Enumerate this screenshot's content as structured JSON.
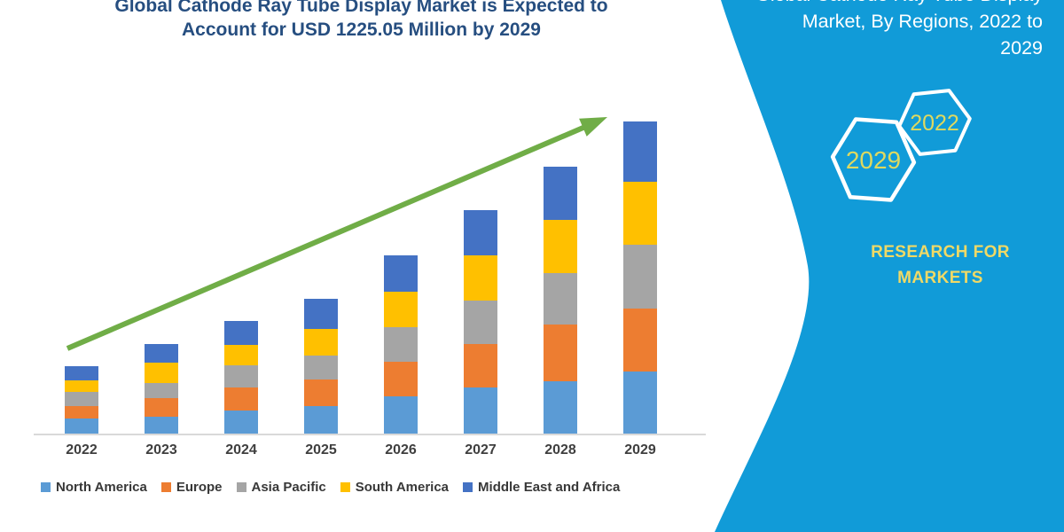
{
  "page": {
    "title_line1": "Global Cathode Ray Tube Display Market is Expected to",
    "title_line2": "Account for USD 1225.05 Million by 2029",
    "title_color": "#264E80"
  },
  "side_panel": {
    "background_color": "#119BD8",
    "heading_lines": [
      "Global Cathode Ray Tube Display",
      "Market, By Regions, 2022 to",
      "2029"
    ],
    "hexagon_badges": [
      {
        "label": "2029"
      },
      {
        "label": "2022"
      }
    ],
    "brand_line1": "RESEARCH FOR",
    "brand_line2": "MARKETS",
    "accent_text_color": "#EFD966",
    "hexagon_year_color": "#DFD95F"
  },
  "chart_data": {
    "type": "bar",
    "stacked": true,
    "unit": "USD Million",
    "categories": [
      "2022",
      "2023",
      "2024",
      "2025",
      "2026",
      "2027",
      "2028",
      "2029"
    ],
    "series": [
      {
        "name": "North America",
        "color": "#5B9BD5",
        "values": [
          59,
          65,
          89,
          107,
          147,
          182,
          205,
          243
        ]
      },
      {
        "name": "Europe",
        "color": "#ED7D31",
        "values": [
          49,
          75,
          93,
          105,
          136,
          169,
          221,
          249
        ]
      },
      {
        "name": "Asia Pacific",
        "color": "#A5A5A5",
        "values": [
          56,
          58,
          84,
          95,
          133,
          172,
          202,
          248
        ]
      },
      {
        "name": "South America",
        "color": "#FFC000",
        "values": [
          45,
          79,
          81,
          104,
          139,
          177,
          209,
          246
        ]
      },
      {
        "name": "Middle East and Africa",
        "color": "#4472C4",
        "values": [
          56,
          74,
          93,
          116,
          145,
          176,
          209,
          239.05
        ]
      }
    ],
    "totals": [
      265,
      351,
      440,
      527,
      700,
      876,
      1046,
      1225.05
    ],
    "ylim": [
      0,
      1280
    ],
    "gridlines": false,
    "y_axis_visible": false,
    "legend_position": "bottom",
    "trend_arrow": {
      "color": "#70AD47",
      "direction": "up-right"
    }
  }
}
